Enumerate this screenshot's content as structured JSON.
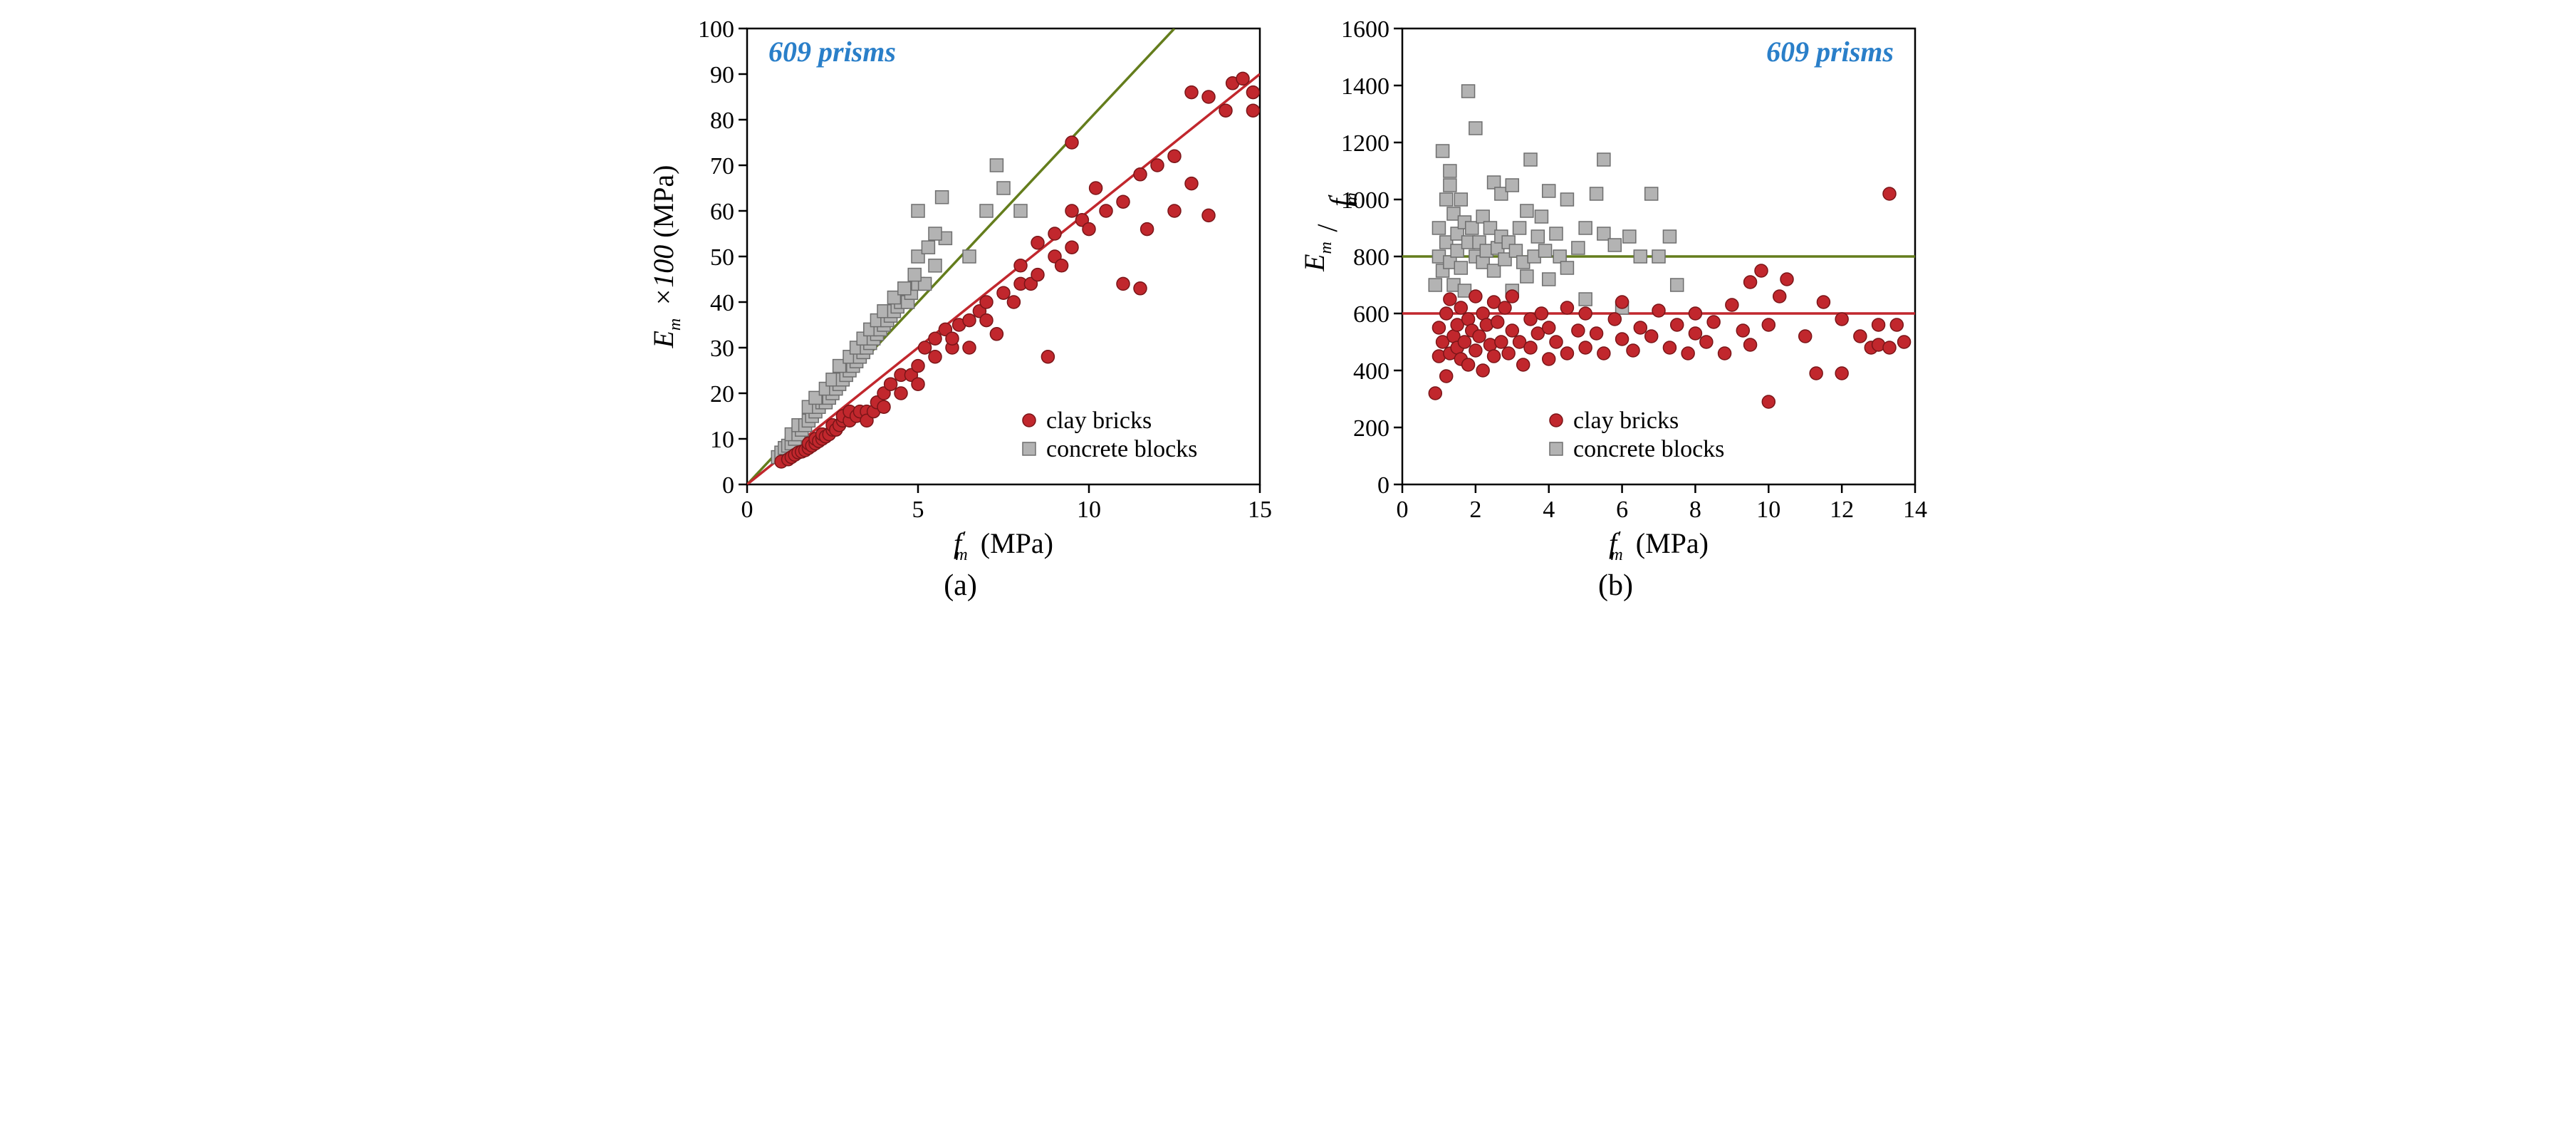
{
  "annotation": "609 prisms",
  "annotation_color": "#2a7fc9",
  "annotation_fontsize": 40,
  "annotation_fontstyle": "italic",
  "annotation_fontweight": "bold",
  "legend": {
    "clay_label": "clay bricks",
    "concrete_label": "concrete blocks",
    "fontsize": 34
  },
  "colors": {
    "clay_fill": "#c1272d",
    "clay_stroke": "#7a1518",
    "concrete_fill": "#b3b3b3",
    "concrete_stroke": "#6e6e6e",
    "line_green": "#647d1c",
    "line_red": "#c1272d",
    "axis": "#000000",
    "grid": "#ffffff",
    "tick_text": "#000000"
  },
  "panel_a": {
    "type": "scatter",
    "sublabel": "(a)",
    "xlabel_plain": " (MPa)",
    "xlabel_var": "f′",
    "xlabel_sub": "m",
    "ylabel_prefix": "E",
    "ylabel_sub": "m",
    "ylabel_suffix": " ×100 (MPa)",
    "xlim": [
      0,
      15
    ],
    "ylim": [
      0,
      100
    ],
    "xticks": [
      0,
      5,
      10,
      15
    ],
    "yticks": [
      0,
      10,
      20,
      30,
      40,
      50,
      60,
      70,
      80,
      90,
      100
    ],
    "tick_fontsize": 34,
    "label_fontsize": 40,
    "marker_radius": 9,
    "marker_side": 18,
    "line_width": 3.5,
    "lines": [
      {
        "color": "#647d1c",
        "x1": 0,
        "y1": 0,
        "x2": 12.5,
        "y2": 100
      },
      {
        "color": "#c1272d",
        "x1": 0,
        "y1": 0,
        "x2": 15,
        "y2": 90
      }
    ],
    "concrete": [
      [
        0.9,
        6
      ],
      [
        1.0,
        7
      ],
      [
        1.1,
        8
      ],
      [
        1.2,
        8.5
      ],
      [
        1.3,
        9
      ],
      [
        1.4,
        10
      ],
      [
        1.3,
        11
      ],
      [
        1.5,
        11
      ],
      [
        1.6,
        12
      ],
      [
        1.5,
        13
      ],
      [
        1.7,
        13
      ],
      [
        1.8,
        14
      ],
      [
        1.9,
        15
      ],
      [
        2.0,
        16
      ],
      [
        1.8,
        17
      ],
      [
        2.1,
        17
      ],
      [
        2.2,
        18
      ],
      [
        2.3,
        18
      ],
      [
        2.0,
        19
      ],
      [
        2.4,
        19
      ],
      [
        2.5,
        20
      ],
      [
        2.3,
        21
      ],
      [
        2.6,
        21
      ],
      [
        2.7,
        22
      ],
      [
        2.5,
        23
      ],
      [
        2.8,
        23
      ],
      [
        2.9,
        24
      ],
      [
        3.0,
        25
      ],
      [
        2.7,
        26
      ],
      [
        3.1,
        26
      ],
      [
        3.2,
        27
      ],
      [
        3.0,
        28
      ],
      [
        3.3,
        28
      ],
      [
        3.4,
        29
      ],
      [
        3.2,
        30
      ],
      [
        3.5,
        30
      ],
      [
        3.6,
        31
      ],
      [
        3.4,
        32
      ],
      [
        3.7,
        32
      ],
      [
        3.8,
        33
      ],
      [
        3.6,
        34
      ],
      [
        3.9,
        34
      ],
      [
        4.0,
        35
      ],
      [
        3.8,
        36
      ],
      [
        4.1,
        36
      ],
      [
        4.2,
        37
      ],
      [
        4.0,
        38
      ],
      [
        4.3,
        38
      ],
      [
        4.4,
        39
      ],
      [
        4.5,
        40
      ],
      [
        4.3,
        41
      ],
      [
        4.7,
        40
      ],
      [
        4.8,
        42
      ],
      [
        4.6,
        43
      ],
      [
        5.0,
        44
      ],
      [
        5.2,
        44
      ],
      [
        4.9,
        46
      ],
      [
        5.5,
        48
      ],
      [
        5.0,
        50
      ],
      [
        5.3,
        52
      ],
      [
        5.8,
        54
      ],
      [
        5.5,
        55
      ],
      [
        5.0,
        60
      ],
      [
        5.7,
        63
      ],
      [
        7.3,
        70
      ],
      [
        6.5,
        50
      ],
      [
        7.0,
        60
      ],
      [
        7.5,
        65
      ],
      [
        8.0,
        60
      ]
    ],
    "clay": [
      [
        1.0,
        5
      ],
      [
        1.2,
        5.5
      ],
      [
        1.3,
        6
      ],
      [
        1.4,
        6.5
      ],
      [
        1.5,
        7
      ],
      [
        1.6,
        7.2
      ],
      [
        1.7,
        7.5
      ],
      [
        1.8,
        8
      ],
      [
        1.8,
        9
      ],
      [
        1.9,
        8.5
      ],
      [
        2.0,
        9
      ],
      [
        2.0,
        10
      ],
      [
        2.1,
        9.5
      ],
      [
        2.2,
        10
      ],
      [
        2.2,
        11
      ],
      [
        2.3,
        10.5
      ],
      [
        2.4,
        11
      ],
      [
        2.5,
        12
      ],
      [
        2.5,
        13
      ],
      [
        2.6,
        12
      ],
      [
        2.7,
        13
      ],
      [
        2.8,
        14
      ],
      [
        2.8,
        15
      ],
      [
        3.0,
        14
      ],
      [
        3.0,
        16
      ],
      [
        3.2,
        15
      ],
      [
        3.3,
        16
      ],
      [
        3.5,
        16
      ],
      [
        3.5,
        14
      ],
      [
        3.7,
        16
      ],
      [
        3.8,
        18
      ],
      [
        4.0,
        17
      ],
      [
        4.0,
        20
      ],
      [
        4.2,
        22
      ],
      [
        4.5,
        20
      ],
      [
        4.5,
        24
      ],
      [
        4.8,
        24
      ],
      [
        5.0,
        22
      ],
      [
        5.0,
        26
      ],
      [
        5.2,
        30
      ],
      [
        5.5,
        28
      ],
      [
        5.5,
        32
      ],
      [
        5.8,
        34
      ],
      [
        6.0,
        30
      ],
      [
        6.0,
        32
      ],
      [
        6.2,
        35
      ],
      [
        6.5,
        36
      ],
      [
        6.5,
        30
      ],
      [
        6.8,
        38
      ],
      [
        7.0,
        36
      ],
      [
        7.0,
        40
      ],
      [
        7.3,
        33
      ],
      [
        7.5,
        42
      ],
      [
        7.8,
        40
      ],
      [
        8.0,
        44
      ],
      [
        8.0,
        48
      ],
      [
        8.3,
        44
      ],
      [
        8.5,
        46
      ],
      [
        8.5,
        53
      ],
      [
        8.8,
        28
      ],
      [
        9.0,
        50
      ],
      [
        9.0,
        55
      ],
      [
        9.2,
        48
      ],
      [
        9.5,
        52
      ],
      [
        9.5,
        60
      ],
      [
        9.5,
        75
      ],
      [
        9.8,
        58
      ],
      [
        10.0,
        56
      ],
      [
        10.2,
        65
      ],
      [
        10.5,
        60
      ],
      [
        11.0,
        62
      ],
      [
        11.0,
        44
      ],
      [
        11.5,
        43
      ],
      [
        11.5,
        68
      ],
      [
        11.7,
        56
      ],
      [
        12.0,
        70
      ],
      [
        12.5,
        72
      ],
      [
        12.5,
        60
      ],
      [
        13.0,
        66
      ],
      [
        13.0,
        86
      ],
      [
        13.5,
        85
      ],
      [
        13.5,
        59
      ],
      [
        14.0,
        82
      ],
      [
        14.2,
        88
      ],
      [
        14.5,
        89
      ],
      [
        14.8,
        82
      ],
      [
        14.8,
        86
      ]
    ]
  },
  "panel_b": {
    "type": "scatter",
    "sublabel": "(b)",
    "xlabel_plain": " (MPa)",
    "xlabel_var": "f′",
    "xlabel_sub": "m",
    "ylabel_top": "E",
    "ylabel_top_sub": "m",
    "ylabel_bot": "f′",
    "ylabel_bot_sub": "m",
    "xlim": [
      0,
      14
    ],
    "ylim": [
      0,
      1600
    ],
    "xticks": [
      0,
      2,
      4,
      6,
      8,
      10,
      12,
      14
    ],
    "yticks": [
      0,
      200,
      400,
      600,
      800,
      1000,
      1200,
      1400,
      1600
    ],
    "tick_fontsize": 34,
    "label_fontsize": 40,
    "marker_radius": 9,
    "marker_side": 18,
    "line_width": 3.5,
    "lines": [
      {
        "color": "#647d1c",
        "y": 800
      },
      {
        "color": "#c1272d",
        "y": 600
      }
    ],
    "concrete": [
      [
        0.9,
        700
      ],
      [
        1.0,
        800
      ],
      [
        1.0,
        900
      ],
      [
        1.1,
        750
      ],
      [
        1.1,
        1170
      ],
      [
        1.2,
        850
      ],
      [
        1.2,
        1000
      ],
      [
        1.3,
        780
      ],
      [
        1.3,
        1100
      ],
      [
        1.3,
        1050
      ],
      [
        1.4,
        700
      ],
      [
        1.4,
        950
      ],
      [
        1.5,
        820
      ],
      [
        1.5,
        880
      ],
      [
        1.6,
        760
      ],
      [
        1.6,
        1000
      ],
      [
        1.7,
        920
      ],
      [
        1.7,
        680
      ],
      [
        1.8,
        850
      ],
      [
        1.8,
        1380
      ],
      [
        1.9,
        900
      ],
      [
        2.0,
        800
      ],
      [
        2.0,
        1250
      ],
      [
        2.1,
        850
      ],
      [
        2.2,
        780
      ],
      [
        2.2,
        940
      ],
      [
        2.3,
        820
      ],
      [
        2.4,
        900
      ],
      [
        2.5,
        750
      ],
      [
        2.5,
        1060
      ],
      [
        2.6,
        830
      ],
      [
        2.7,
        870
      ],
      [
        2.7,
        1020
      ],
      [
        2.8,
        790
      ],
      [
        2.9,
        850
      ],
      [
        3.0,
        680
      ],
      [
        3.0,
        1050
      ],
      [
        3.1,
        820
      ],
      [
        3.2,
        900
      ],
      [
        3.3,
        780
      ],
      [
        3.4,
        960
      ],
      [
        3.4,
        730
      ],
      [
        3.5,
        1140
      ],
      [
        3.6,
        800
      ],
      [
        3.7,
        870
      ],
      [
        3.8,
        940
      ],
      [
        3.9,
        820
      ],
      [
        4.0,
        720
      ],
      [
        4.0,
        1030
      ],
      [
        4.2,
        880
      ],
      [
        4.3,
        800
      ],
      [
        4.5,
        760
      ],
      [
        4.5,
        1000
      ],
      [
        4.8,
        830
      ],
      [
        5.0,
        900
      ],
      [
        5.0,
        650
      ],
      [
        5.3,
        1020
      ],
      [
        5.5,
        880
      ],
      [
        5.5,
        1140
      ],
      [
        5.8,
        840
      ],
      [
        6.0,
        620
      ],
      [
        6.2,
        870
      ],
      [
        6.5,
        800
      ],
      [
        6.8,
        1020
      ],
      [
        7.0,
        800
      ],
      [
        7.3,
        870
      ],
      [
        7.5,
        700
      ]
    ],
    "clay": [
      [
        0.9,
        320
      ],
      [
        1.0,
        450
      ],
      [
        1.0,
        550
      ],
      [
        1.1,
        500
      ],
      [
        1.2,
        380
      ],
      [
        1.2,
        600
      ],
      [
        1.3,
        650
      ],
      [
        1.3,
        460
      ],
      [
        1.4,
        520
      ],
      [
        1.5,
        480
      ],
      [
        1.5,
        560
      ],
      [
        1.6,
        440
      ],
      [
        1.6,
        620
      ],
      [
        1.7,
        500
      ],
      [
        1.8,
        420
      ],
      [
        1.8,
        580
      ],
      [
        1.9,
        540
      ],
      [
        2.0,
        470
      ],
      [
        2.0,
        660
      ],
      [
        2.1,
        520
      ],
      [
        2.2,
        600
      ],
      [
        2.2,
        400
      ],
      [
        2.3,
        560
      ],
      [
        2.4,
        490
      ],
      [
        2.5,
        640
      ],
      [
        2.5,
        450
      ],
      [
        2.6,
        570
      ],
      [
        2.7,
        500
      ],
      [
        2.8,
        620
      ],
      [
        2.9,
        460
      ],
      [
        3.0,
        540
      ],
      [
        3.0,
        660
      ],
      [
        3.2,
        500
      ],
      [
        3.3,
        420
      ],
      [
        3.5,
        580
      ],
      [
        3.5,
        480
      ],
      [
        3.7,
        530
      ],
      [
        3.8,
        600
      ],
      [
        4.0,
        440
      ],
      [
        4.0,
        550
      ],
      [
        4.2,
        500
      ],
      [
        4.5,
        460
      ],
      [
        4.5,
        620
      ],
      [
        4.8,
        540
      ],
      [
        5.0,
        480
      ],
      [
        5.0,
        600
      ],
      [
        5.3,
        530
      ],
      [
        5.5,
        460
      ],
      [
        5.8,
        580
      ],
      [
        6.0,
        510
      ],
      [
        6.0,
        640
      ],
      [
        6.3,
        470
      ],
      [
        6.5,
        550
      ],
      [
        6.8,
        520
      ],
      [
        7.0,
        610
      ],
      [
        7.3,
        480
      ],
      [
        7.5,
        560
      ],
      [
        7.8,
        460
      ],
      [
        8.0,
        600
      ],
      [
        8.0,
        530
      ],
      [
        8.3,
        500
      ],
      [
        8.5,
        570
      ],
      [
        8.8,
        460
      ],
      [
        9.0,
        630
      ],
      [
        9.3,
        540
      ],
      [
        9.5,
        490
      ],
      [
        9.5,
        710
      ],
      [
        9.8,
        750
      ],
      [
        10.0,
        290
      ],
      [
        10.0,
        560
      ],
      [
        10.3,
        660
      ],
      [
        10.5,
        720
      ],
      [
        11.0,
        520
      ],
      [
        11.3,
        390
      ],
      [
        11.5,
        640
      ],
      [
        12.0,
        580
      ],
      [
        12.0,
        390
      ],
      [
        12.5,
        520
      ],
      [
        12.8,
        480
      ],
      [
        13.0,
        560
      ],
      [
        13.0,
        490
      ],
      [
        13.3,
        480
      ],
      [
        13.3,
        1020
      ],
      [
        13.5,
        560
      ],
      [
        13.7,
        500
      ]
    ]
  }
}
